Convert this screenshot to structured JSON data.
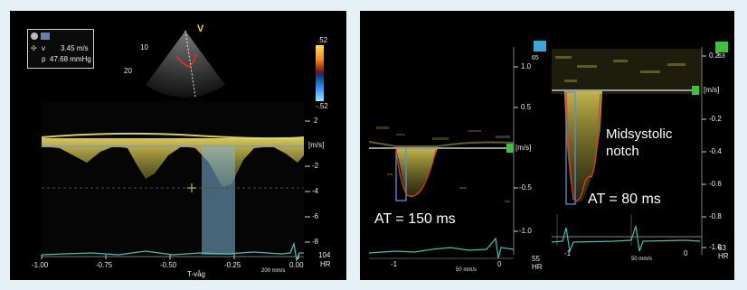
{
  "left": {
    "readout": {
      "vel_label": "v",
      "vel_value": "3.45 m/s",
      "p_label": "p",
      "p_value": "47.68 mmHg"
    },
    "probe": {
      "v_marker": "V",
      "mark_10": "10",
      "mark_20": "20"
    },
    "colorbar": {
      "top": ".52",
      "bottom": "-.52"
    },
    "y_ticks": [
      "2",
      "-2",
      "-4",
      "-6",
      "-8"
    ],
    "unit": "[m/s]",
    "x_ticks": [
      "-1.00",
      "-0.75",
      "-0.50",
      "-0.25",
      "0.00"
    ],
    "twave_label": "T-våg",
    "hr_value": "104",
    "hr_label": "HR",
    "sweep": "200 mm/s"
  },
  "right_a": {
    "y_ticks": [
      "1.0",
      "0.5",
      "-0.5",
      "-1.0"
    ],
    "top_small": "65",
    "unit": "[m/s]",
    "x_ticks": [
      "-1",
      "0"
    ],
    "sweep": "50 mm/s",
    "hr_value": "55",
    "hr_label": "HR",
    "annotation": "AT = 150 ms"
  },
  "right_b": {
    "y_ticks": [
      "0.2",
      "-0.2",
      "-0.4",
      "-0.6",
      "-0.8",
      "-1.0"
    ],
    "top_small": "63",
    "unit": "[m/s]",
    "x_ticks": [
      "-1",
      "0"
    ],
    "sweep": "50 mm/s",
    "hr_value": "63",
    "hr_label": "HR",
    "annotation_notch_1": "Midsystolic",
    "annotation_notch_2": "notch",
    "annotation_at": "AT = 80 ms"
  },
  "colors": {
    "doppler_yellow": "#d9c94a",
    "baseline": "#9a9a9a",
    "ecg": "#3fbfb0",
    "highlight": "#7fb3d9",
    "trace_red": "#d8402a",
    "marker_green": "#3cc33c"
  },
  "icons": [
    "record-icon",
    "transducer-icon",
    "crosshair-icon"
  ]
}
